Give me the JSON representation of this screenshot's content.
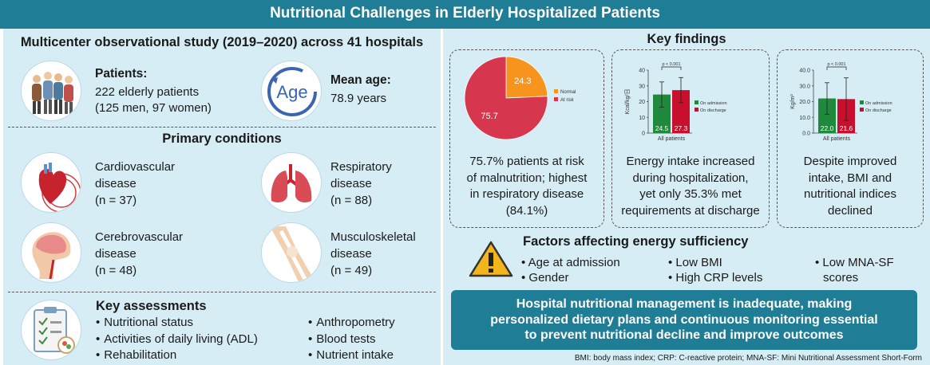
{
  "title": "Nutritional Challenges in Elderly Hospitalized Patients",
  "study": {
    "title": "Multicenter observational study (2019–2020) across 41 hospitals",
    "patients_label": "Patients:",
    "patients_line1": "222 elderly patients",
    "patients_line2": "(125 men, 97 women)",
    "age_icon_text": "Age",
    "mean_age_label": "Mean age:",
    "mean_age_value": "78.9 years"
  },
  "conditions": {
    "title": "Primary conditions",
    "items": [
      {
        "name1": "Cardiovascular",
        "name2": "disease",
        "n": "(n = 37)",
        "icon": "heart-icon"
      },
      {
        "name1": "Respiratory",
        "name2": "disease",
        "n": "(n = 88)",
        "icon": "lungs-icon"
      },
      {
        "name1": "Cerebrovascular",
        "name2": "disease",
        "n": "(n = 48)",
        "icon": "brain-icon"
      },
      {
        "name1": "Musculoskeletal",
        "name2": "disease",
        "n": "(n = 49)",
        "icon": "knee-icon"
      }
    ]
  },
  "assessments": {
    "title": "Key assessments",
    "col1": [
      "Nutritional status",
      "Activities of daily living (ADL)",
      "Rehabilitation"
    ],
    "col2": [
      "Anthropometry",
      "Blood tests",
      "Nutrient intake"
    ]
  },
  "key_findings": {
    "title": "Key findings",
    "card1_text": [
      "75.7% patients at risk",
      "of malnutrition; highest",
      "in respiratory disease",
      "(84.1%)"
    ],
    "card2_text": [
      "Energy intake increased",
      "during hospitalization,",
      "yet only 35.3% met",
      "requirements at discharge"
    ],
    "card3_text": [
      "Despite improved",
      "intake, BMI and",
      "nutritional indices",
      "declined"
    ]
  },
  "chart_data": [
    {
      "type": "pie",
      "labels": [
        "Normal",
        "At risk"
      ],
      "values": [
        24.3,
        75.7
      ],
      "colors": [
        "#f7941d",
        "#d7364f"
      ]
    },
    {
      "type": "bar",
      "categories": [
        "All patients"
      ],
      "series": [
        {
          "name": "On admission",
          "values": [
            24.5
          ],
          "error": [
            8
          ],
          "color": "#1f8a3c"
        },
        {
          "name": "On discharge",
          "values": [
            27.3
          ],
          "error": [
            8
          ],
          "color": "#c8102e"
        }
      ],
      "ylabel": "Kcal/kg/日",
      "ylim": [
        0,
        40
      ],
      "yticks": [
        "0",
        "10",
        "20",
        "30",
        "40"
      ],
      "annotation": "p < 0.001"
    },
    {
      "type": "bar",
      "categories": [
        "All patients"
      ],
      "series": [
        {
          "name": "On admission",
          "values": [
            22.0
          ],
          "error": [
            10
          ],
          "color": "#1f8a3c"
        },
        {
          "name": "On discharge",
          "values": [
            21.6
          ],
          "error": [
            13.5
          ],
          "color": "#c8102e"
        }
      ],
      "ylabel": "Kg/m²",
      "ylim": [
        0,
        40
      ],
      "yticks": [
        "0.0",
        "10.0",
        "20.0",
        "30.0",
        "40.0"
      ],
      "annotation": "p < 0.001"
    }
  ],
  "factors": {
    "title": "Factors affecting energy sufficiency",
    "items": [
      "Age at admission",
      "Gender",
      "Low BMI",
      "High CRP levels",
      "Low MNA-SF",
      "scores"
    ]
  },
  "conclusion": [
    "Hospital nutritional management is inadequate, making",
    "personalized dietary plans and continuous monitoring essential",
    "to prevent nutritional decline and improve outcomes"
  ],
  "footnote": "BMI: body mass index; CRP: C-reactive protein; MNA-SF: Mini Nutritional Assessment Short-Form"
}
